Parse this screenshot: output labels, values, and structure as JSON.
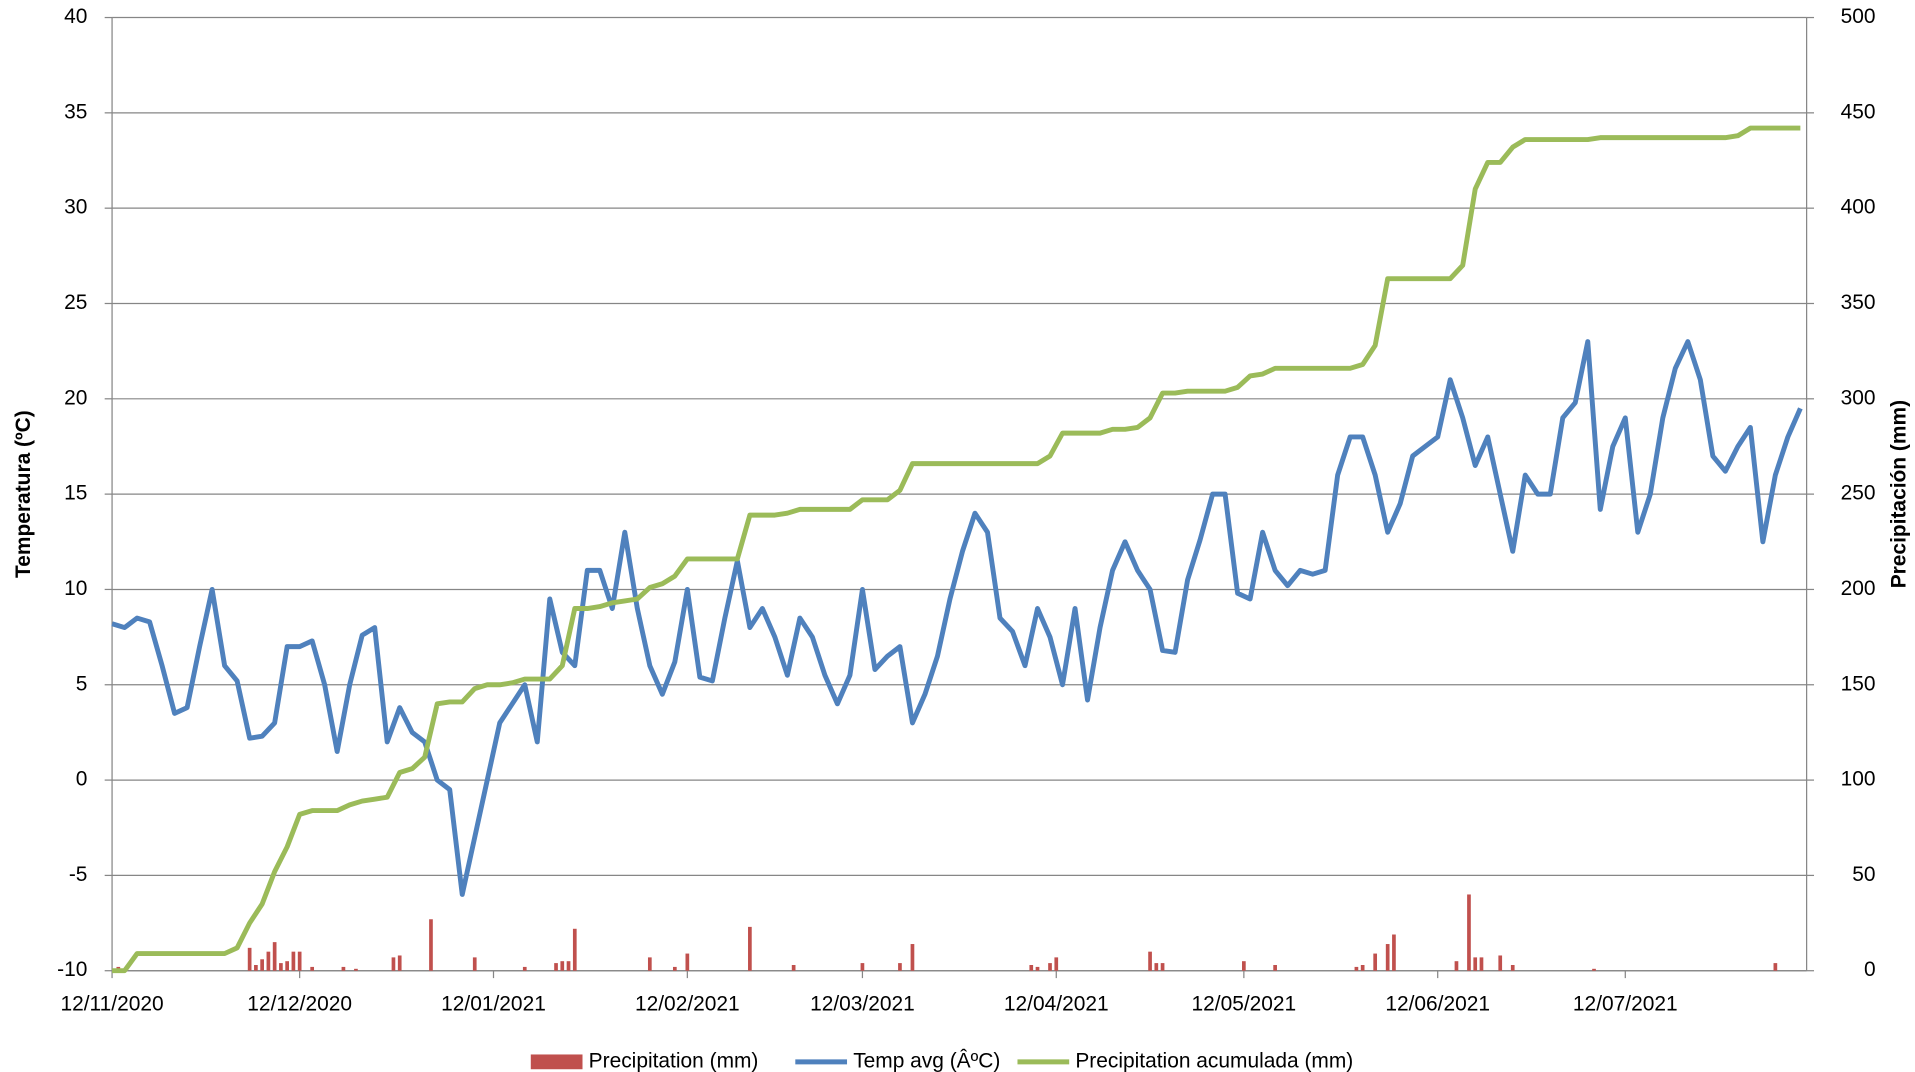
{
  "chart_data": {
    "type": "line",
    "ylabel": "Temperatura (ºC)",
    "y2label": "Precipitación (mm)",
    "grid": true,
    "legend": "bottom",
    "xlim": [
      "12/11/2020",
      "10/08/2021"
    ],
    "xticks": [
      "12/11/2020",
      "12/12/2020",
      "12/01/2021",
      "12/02/2021",
      "12/03/2021",
      "12/04/2021",
      "12/05/2021",
      "12/06/2021",
      "12/07/2021"
    ],
    "ylim": [
      -10,
      40
    ],
    "yticks": [
      -10,
      -5,
      0,
      5,
      10,
      15,
      20,
      25,
      30,
      35,
      40
    ],
    "y2lim": [
      0,
      500
    ],
    "y2ticks": [
      0,
      50,
      100,
      150,
      200,
      250,
      300,
      350,
      400,
      450,
      500
    ],
    "x": [
      "12/11/2020",
      "14/11/2020",
      "16/11/2020",
      "18/11/2020",
      "20/11/2020",
      "22/11/2020",
      "24/11/2020",
      "26/11/2020",
      "28/11/2020",
      "30/11/2020",
      "02/12/2020",
      "04/12/2020",
      "06/12/2020",
      "08/12/2020",
      "10/12/2020",
      "12/12/2020",
      "14/12/2020",
      "16/12/2020",
      "18/12/2020",
      "20/12/2020",
      "22/12/2020",
      "24/12/2020",
      "26/12/2020",
      "28/12/2020",
      "30/12/2020",
      "01/01/2021",
      "03/01/2021",
      "05/01/2021",
      "07/01/2021",
      "09/01/2021",
      "11/01/2021",
      "13/01/2021",
      "15/01/2021",
      "17/01/2021",
      "19/01/2021",
      "21/01/2021",
      "23/01/2021",
      "25/01/2021",
      "27/01/2021",
      "29/01/2021",
      "31/01/2021",
      "02/02/2021",
      "04/02/2021",
      "06/02/2021",
      "08/02/2021",
      "10/02/2021",
      "12/02/2021",
      "14/02/2021",
      "16/02/2021",
      "18/02/2021",
      "20/02/2021",
      "22/02/2021",
      "24/02/2021",
      "26/02/2021",
      "28/02/2021",
      "02/03/2021",
      "04/03/2021",
      "06/03/2021",
      "08/03/2021",
      "10/03/2021",
      "12/03/2021",
      "14/03/2021",
      "16/03/2021",
      "18/03/2021",
      "20/03/2021",
      "22/03/2021",
      "24/03/2021",
      "26/03/2021",
      "28/03/2021",
      "30/03/2021",
      "01/04/2021",
      "03/04/2021",
      "05/04/2021",
      "07/04/2021",
      "09/04/2021",
      "11/04/2021",
      "13/04/2021",
      "15/04/2021",
      "17/04/2021",
      "19/04/2021",
      "21/04/2021",
      "23/04/2021",
      "25/04/2021",
      "27/04/2021",
      "29/04/2021",
      "01/05/2021",
      "03/05/2021",
      "05/05/2021",
      "07/05/2021",
      "09/05/2021",
      "11/05/2021",
      "13/05/2021",
      "15/05/2021",
      "17/05/2021",
      "19/05/2021",
      "21/05/2021",
      "23/05/2021",
      "25/05/2021",
      "27/05/2021",
      "29/05/2021",
      "31/05/2021",
      "02/06/2021",
      "04/06/2021",
      "06/06/2021",
      "08/06/2021",
      "10/06/2021",
      "12/06/2021",
      "14/06/2021",
      "16/06/2021",
      "18/06/2021",
      "20/06/2021",
      "22/06/2021",
      "24/06/2021",
      "26/06/2021",
      "28/06/2021",
      "30/06/2021",
      "02/07/2021",
      "04/07/2021",
      "06/07/2021",
      "08/07/2021",
      "10/07/2021",
      "12/07/2021",
      "14/07/2021",
      "16/07/2021",
      "18/07/2021",
      "20/07/2021",
      "22/07/2021",
      "24/07/2021",
      "26/07/2021",
      "28/07/2021",
      "30/07/2021",
      "01/08/2021",
      "03/08/2021",
      "05/08/2021",
      "07/08/2021",
      "09/08/2021"
    ],
    "series": [
      {
        "name": "Precipitation (mm)",
        "type": "bar",
        "axis": "y2",
        "color": "#c0504d",
        "x": [
          "13/11/2020",
          "04/12/2020",
          "05/12/2020",
          "06/12/2020",
          "07/12/2020",
          "08/12/2020",
          "09/12/2020",
          "10/12/2020",
          "11/12/2020",
          "12/12/2020",
          "14/12/2020",
          "19/12/2020",
          "21/12/2020",
          "27/12/2020",
          "28/12/2020",
          "02/01/2021",
          "09/01/2021",
          "17/01/2021",
          "22/01/2021",
          "23/01/2021",
          "24/01/2021",
          "25/01/2021",
          "06/02/2021",
          "10/02/2021",
          "12/02/2021",
          "22/02/2021",
          "01/03/2021",
          "12/03/2021",
          "18/03/2021",
          "20/03/2021",
          "08/04/2021",
          "09/04/2021",
          "11/04/2021",
          "12/04/2021",
          "27/04/2021",
          "28/04/2021",
          "29/04/2021",
          "12/05/2021",
          "17/05/2021",
          "30/05/2021",
          "31/05/2021",
          "02/06/2021",
          "04/06/2021",
          "05/06/2021",
          "15/06/2021",
          "17/06/2021",
          "18/06/2021",
          "19/06/2021",
          "22/06/2021",
          "24/06/2021",
          "07/07/2021",
          "05/08/2021"
        ],
        "values": [
          2,
          12,
          3,
          6,
          10,
          15,
          4,
          5,
          10,
          10,
          2,
          2,
          1,
          7,
          8,
          27,
          7,
          2,
          4,
          5,
          5,
          22,
          7,
          2,
          9,
          23,
          3,
          4,
          4,
          14,
          3,
          2,
          4,
          7,
          10,
          4,
          4,
          5,
          3,
          2,
          3,
          9,
          14,
          19,
          5,
          40,
          7,
          7,
          8,
          3,
          1,
          4
        ]
      },
      {
        "name": "Temp avg (ÂºC)",
        "type": "line",
        "color": "#4f81bd",
        "values": [
          8.2,
          8.0,
          8.5,
          8.3,
          6,
          3.5,
          3.8,
          7,
          10,
          6,
          5.2,
          2.2,
          2.3,
          3.0,
          7,
          7.0,
          7.3,
          5.0,
          1.5,
          5.0,
          7.6,
          8.0,
          2.0,
          3.8,
          2.5,
          2.0,
          0.0,
          -0.5,
          -6,
          -3,
          0,
          3.0,
          4.0,
          5.0,
          2.0,
          9.5,
          6.7,
          6.0,
          11,
          11,
          9.0,
          13,
          9.0,
          6,
          4.5,
          6.2,
          10,
          5.4,
          5.2,
          8.5,
          11.5,
          8.0,
          9.0,
          7.5,
          5.5,
          8.5,
          7.5,
          5.5,
          4.0,
          5.5,
          10,
          5.8,
          6.5,
          7.0,
          3.0,
          4.5,
          6.5,
          9.5,
          12,
          14,
          13,
          8.5,
          7.8,
          6,
          9.0,
          7.5,
          5.0,
          9.0,
          4.2,
          8.0,
          11,
          12.5,
          11,
          10,
          6.8,
          6.7,
          10.5,
          12.6,
          15,
          15,
          9.8,
          9.5,
          13,
          11.0,
          10.2,
          11,
          10.8,
          11,
          16,
          18,
          18,
          16,
          13,
          14.5,
          17,
          17.5,
          18,
          21,
          19,
          16.5,
          18,
          15,
          12,
          16,
          15,
          15,
          19,
          19.8,
          23,
          14.2,
          17.5,
          19,
          13,
          15,
          19,
          21.6,
          23,
          21,
          17,
          16.2,
          17.5,
          18.5,
          12.5,
          16,
          18,
          19.5
        ]
      },
      {
        "name": "Precipitation acumulada (mm)",
        "type": "line",
        "axis": "y2",
        "color": "#9bbb59",
        "values": [
          0,
          0,
          9,
          9,
          9,
          9,
          9,
          9,
          9,
          9,
          12,
          25,
          35,
          52,
          65,
          82,
          84,
          84,
          84,
          87,
          89,
          90,
          91,
          104,
          106,
          112,
          140,
          141,
          141,
          148,
          150,
          150,
          151,
          153,
          153,
          153,
          160,
          190,
          190,
          191,
          193,
          194,
          195,
          201,
          203,
          207,
          216,
          216,
          216,
          216,
          216,
          239,
          239,
          239,
          240,
          242,
          242,
          242,
          242,
          242,
          247,
          247,
          247,
          252,
          266,
          266,
          266,
          266,
          266,
          266,
          266,
          266,
          266,
          266,
          266,
          270,
          282,
          282,
          282,
          282,
          284,
          284,
          285,
          290,
          303,
          303,
          304,
          304,
          304,
          304,
          306,
          312,
          313,
          316,
          316,
          316,
          316,
          316,
          316,
          316,
          318,
          328,
          363,
          363,
          363,
          363,
          363,
          363,
          370,
          410,
          424,
          424,
          432,
          436,
          436,
          436,
          436,
          436,
          436,
          437,
          437,
          437,
          437,
          437,
          437,
          437,
          437,
          437,
          437,
          437,
          438,
          442,
          442,
          442,
          442,
          442
        ]
      }
    ]
  }
}
